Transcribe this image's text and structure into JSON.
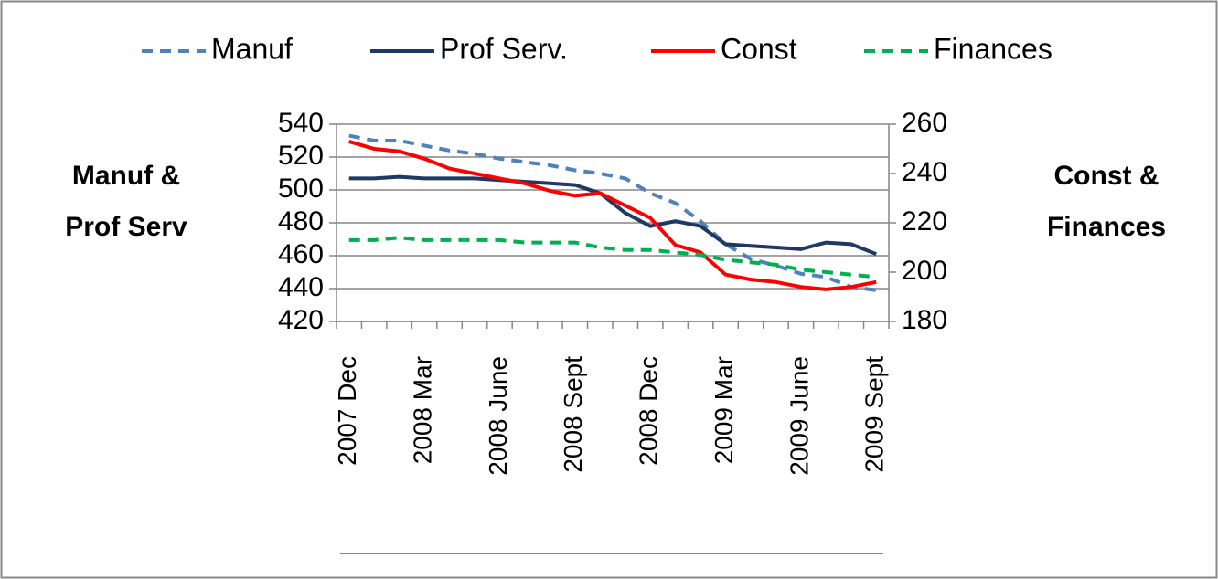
{
  "chart_data": {
    "type": "line",
    "categories": [
      "2007 Dec",
      null,
      null,
      "2008 Mar",
      null,
      null,
      "2008 June",
      null,
      null,
      "2008 Sept",
      null,
      null,
      "2008 Dec",
      null,
      null,
      "2009 Mar",
      null,
      null,
      "2009 June",
      null,
      null,
      "2009 Sept"
    ],
    "y_label": [
      "Manuf &",
      "Prof Serv"
    ],
    "y2_label": [
      "Const &",
      "Finances"
    ],
    "ylim": [
      420,
      540
    ],
    "yticks": [
      420,
      440,
      460,
      480,
      500,
      520,
      540
    ],
    "y2lim": [
      180,
      260
    ],
    "y2ticks": [
      180,
      200,
      220,
      240,
      260
    ],
    "grid": true,
    "legend": "top",
    "series": [
      {
        "name": "Manuf",
        "color": "#4f81bd",
        "dash": true,
        "values": [
          533,
          530,
          530,
          527,
          524,
          522,
          519,
          517,
          515,
          512,
          510,
          507,
          498,
          492,
          481,
          467,
          458,
          454,
          449,
          447,
          441,
          439
        ]
      },
      {
        "name": "Prof Serv.",
        "color": "#1f3864",
        "dash": false,
        "values": [
          507,
          507,
          508,
          507,
          507,
          507,
          506,
          505,
          504,
          503,
          498,
          486,
          478,
          481,
          478,
          467,
          466,
          465,
          464,
          468,
          467,
          461
        ]
      },
      {
        "name": "Const",
        "color": "#ff0000",
        "dash": false,
        "axis": "y2",
        "values": [
          253,
          250,
          249,
          246,
          242,
          240,
          238,
          236,
          233,
          231,
          232,
          227,
          222,
          211,
          208,
          199,
          197,
          196,
          194,
          193,
          194,
          196
        ]
      },
      {
        "name": "Finances",
        "color": "#00b050",
        "dash": true,
        "axis": "y2",
        "values": [
          213,
          213,
          214,
          213,
          213,
          213,
          213,
          212,
          212,
          212,
          210,
          209,
          209,
          208,
          207,
          205,
          204,
          203,
          201,
          200,
          199,
          198
        ]
      }
    ]
  }
}
